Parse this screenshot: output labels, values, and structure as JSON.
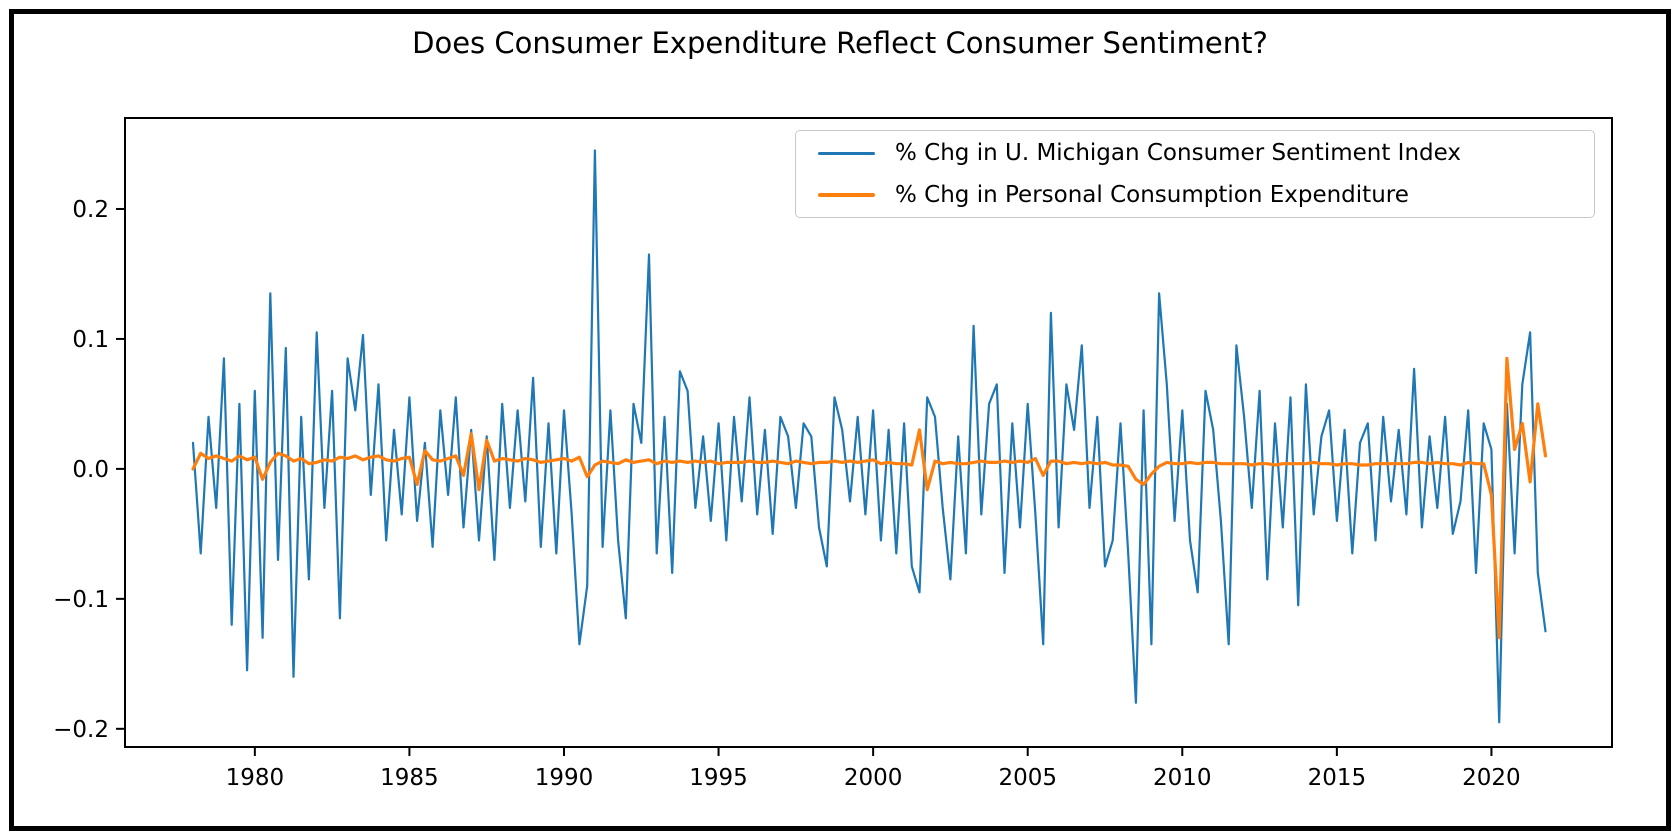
{
  "figure": {
    "title": "Does Consumer Expenditure Reflect Consumer Sentiment?",
    "background_color": "#ffffff",
    "border_color": "#000000"
  },
  "legend": {
    "entries": [
      {
        "label": "% Chg in U. Michigan Consumer Sentiment Index",
        "color": "#1f77b4"
      },
      {
        "label": "% Chg in Personal Consumption Expenditure",
        "color": "#ff7f0e"
      }
    ]
  },
  "chart_data": {
    "type": "line",
    "title": "Does Consumer Expenditure Reflect Consumer Sentiment?",
    "xlabel": "",
    "ylabel": "",
    "grid": false,
    "legend_position": "upper right",
    "xlim": [
      1975.8,
      2023.9
    ],
    "ylim": [
      -0.214,
      0.27
    ],
    "x_ticks": [
      1980,
      1985,
      1990,
      1995,
      2000,
      2005,
      2010,
      2015,
      2020
    ],
    "x_tick_labels": [
      "1980",
      "1985",
      "1990",
      "1995",
      "2000",
      "2005",
      "2010",
      "2015",
      "2020"
    ],
    "y_ticks": [
      0.2,
      0.1,
      0.0,
      -0.1,
      -0.2
    ],
    "y_tick_labels": [
      "0.2",
      "0.1",
      "0.0",
      "−0.1",
      "−0.2"
    ],
    "x_start": 1978.0,
    "x_step": 0.25,
    "series": [
      {
        "name": "% Chg in U. Michigan Consumer Sentiment Index",
        "color": "#1f77b4",
        "linewidth": 2.2,
        "values": [
          0.02,
          -0.065,
          0.04,
          -0.03,
          0.085,
          -0.12,
          0.05,
          -0.155,
          0.06,
          -0.13,
          0.135,
          -0.07,
          0.093,
          -0.16,
          0.04,
          -0.085,
          0.105,
          -0.03,
          0.06,
          -0.115,
          0.085,
          0.045,
          0.103,
          -0.02,
          0.065,
          -0.055,
          0.03,
          -0.035,
          0.055,
          -0.04,
          0.02,
          -0.06,
          0.045,
          -0.02,
          0.055,
          -0.045,
          0.03,
          -0.055,
          0.025,
          -0.07,
          0.05,
          -0.03,
          0.045,
          -0.025,
          0.07,
          -0.06,
          0.035,
          -0.065,
          0.045,
          -0.035,
          -0.135,
          -0.09,
          0.245,
          -0.06,
          0.045,
          -0.055,
          -0.115,
          0.05,
          0.02,
          0.165,
          -0.065,
          0.04,
          -0.08,
          0.075,
          0.06,
          -0.03,
          0.025,
          -0.04,
          0.035,
          -0.055,
          0.04,
          -0.025,
          0.055,
          -0.035,
          0.03,
          -0.05,
          0.04,
          0.025,
          -0.03,
          0.035,
          0.025,
          -0.045,
          -0.075,
          0.055,
          0.03,
          -0.025,
          0.04,
          -0.035,
          0.045,
          -0.055,
          0.03,
          -0.065,
          0.035,
          -0.075,
          -0.095,
          0.055,
          0.04,
          -0.03,
          -0.085,
          0.025,
          -0.065,
          0.11,
          -0.035,
          0.05,
          0.065,
          -0.08,
          0.035,
          -0.045,
          0.05,
          -0.035,
          -0.135,
          0.12,
          -0.045,
          0.065,
          0.03,
          0.095,
          -0.03,
          0.04,
          -0.075,
          -0.055,
          0.035,
          -0.065,
          -0.18,
          0.045,
          -0.135,
          0.135,
          0.065,
          -0.04,
          0.045,
          -0.055,
          -0.095,
          0.06,
          0.03,
          -0.04,
          -0.135,
          0.095,
          0.04,
          -0.03,
          0.06,
          -0.085,
          0.035,
          -0.045,
          0.055,
          -0.105,
          0.065,
          -0.035,
          0.025,
          0.045,
          -0.04,
          0.03,
          -0.065,
          0.02,
          0.035,
          -0.055,
          0.04,
          -0.025,
          0.03,
          -0.035,
          0.077,
          -0.045,
          0.025,
          -0.03,
          0.04,
          -0.05,
          -0.025,
          0.045,
          -0.08,
          0.035,
          0.015,
          -0.195,
          0.05,
          -0.065,
          0.065,
          0.105,
          -0.08,
          -0.125
        ]
      },
      {
        "name": "% Chg in Personal Consumption Expenditure",
        "color": "#ff7f0e",
        "linewidth": 3.2,
        "values": [
          0.0,
          0.012,
          0.008,
          0.01,
          0.008,
          0.006,
          0.01,
          0.007,
          0.009,
          -0.008,
          0.005,
          0.012,
          0.01,
          0.006,
          0.008,
          0.004,
          0.005,
          0.007,
          0.006,
          0.009,
          0.008,
          0.01,
          0.007,
          0.009,
          0.01,
          0.007,
          0.006,
          0.008,
          0.009,
          -0.012,
          0.014,
          0.007,
          0.006,
          0.008,
          0.01,
          -0.005,
          0.027,
          -0.016,
          0.022,
          0.006,
          0.008,
          0.007,
          0.006,
          0.008,
          0.007,
          0.005,
          0.006,
          0.007,
          0.008,
          0.006,
          0.009,
          -0.006,
          0.003,
          0.006,
          0.005,
          0.004,
          0.007,
          0.005,
          0.006,
          0.007,
          0.004,
          0.006,
          0.005,
          0.006,
          0.005,
          0.006,
          0.005,
          0.006,
          0.004,
          0.005,
          0.005,
          0.005,
          0.006,
          0.005,
          0.005,
          0.006,
          0.005,
          0.004,
          0.006,
          0.005,
          0.004,
          0.005,
          0.005,
          0.006,
          0.005,
          0.006,
          0.005,
          0.006,
          0.007,
          0.004,
          0.005,
          0.004,
          0.004,
          0.003,
          0.03,
          -0.016,
          0.006,
          0.004,
          0.005,
          0.004,
          0.004,
          0.005,
          0.006,
          0.005,
          0.005,
          0.006,
          0.005,
          0.006,
          0.005,
          0.008,
          -0.005,
          0.006,
          0.006,
          0.004,
          0.005,
          0.004,
          0.005,
          0.004,
          0.005,
          0.003,
          0.003,
          0.002,
          -0.008,
          -0.012,
          -0.004,
          0.002,
          0.005,
          0.004,
          0.004,
          0.005,
          0.004,
          0.005,
          0.005,
          0.004,
          0.004,
          0.004,
          0.004,
          0.003,
          0.004,
          0.004,
          0.003,
          0.004,
          0.004,
          0.004,
          0.004,
          0.005,
          0.004,
          0.004,
          0.003,
          0.004,
          0.004,
          0.003,
          0.003,
          0.004,
          0.004,
          0.004,
          0.004,
          0.004,
          0.005,
          0.005,
          0.004,
          0.005,
          0.004,
          0.004,
          0.003,
          0.005,
          0.004,
          0.004,
          -0.02,
          -0.13,
          0.085,
          0.015,
          0.035,
          -0.01,
          0.05,
          0.01
        ]
      }
    ]
  }
}
